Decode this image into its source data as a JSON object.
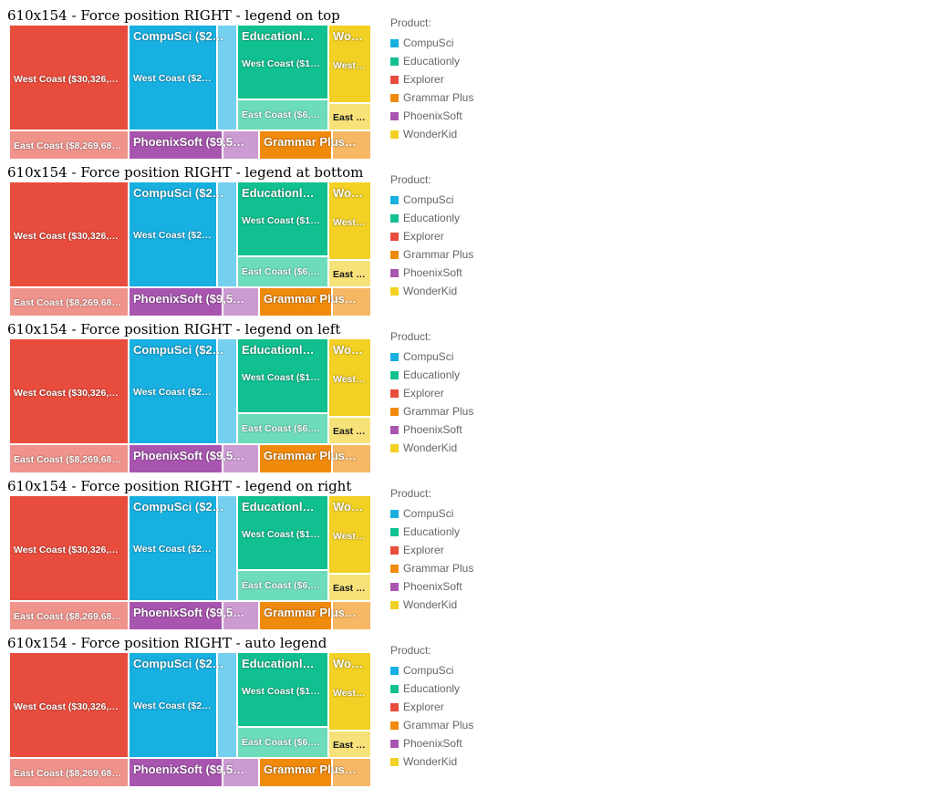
{
  "sections": [
    {
      "title": "610x154 - Force position RIGHT - legend on top"
    },
    {
      "title": "610x154 - Force position RIGHT - legend at bottom"
    },
    {
      "title": "610x154 - Force position RIGHT - legend on left"
    },
    {
      "title": "610x154 - Force position RIGHT - legend on right"
    },
    {
      "title": "610x154 - Force position RIGHT - auto legend"
    }
  ],
  "chart_data": {
    "type": "treemap",
    "legend": {
      "title": "Product:",
      "position": "right",
      "items": [
        {
          "name": "CompuSci",
          "color": "#17b0e0"
        },
        {
          "name": "Educationly",
          "color": "#10c090"
        },
        {
          "name": "Explorer",
          "color": "#e84c3d"
        },
        {
          "name": "Grammar Plus",
          "color": "#f08a0c"
        },
        {
          "name": "PhoenixSoft",
          "color": "#a855b0"
        },
        {
          "name": "WonderKid",
          "color": "#f2d024"
        }
      ]
    },
    "nodes": [
      {
        "product": "Explorer",
        "parent_label": "",
        "color": "#e84c3d",
        "light": "#f0938b",
        "children": [
          {
            "label": "West Coast ($30,326,…",
            "region": "West Coast"
          },
          {
            "label": "East Coast ($8,269,68…",
            "region": "East Coast"
          }
        ]
      },
      {
        "product": "CompuSci",
        "parent_label": "CompuSci ($2…",
        "color": "#17b0e0",
        "light": "#74d0ee",
        "children": [
          {
            "label": "West Coast ($2…",
            "region": "West Coast"
          },
          {
            "label": "",
            "region": "East Coast"
          }
        ]
      },
      {
        "product": "Educationly",
        "parent_label": "Educationl…",
        "color": "#10c090",
        "light": "#6ddcbb",
        "children": [
          {
            "label": "West Coast ($1…",
            "region": "West Coast"
          },
          {
            "label": "East Coast ($6,…",
            "region": "East Coast"
          }
        ]
      },
      {
        "product": "WonderKid",
        "parent_label": "Wo…",
        "color": "#f2d024",
        "light": "#f7e27a",
        "children": [
          {
            "label": "West …",
            "region": "West Coast"
          },
          {
            "label": "East …",
            "region": "East Coast"
          }
        ]
      },
      {
        "product": "PhoenixSoft",
        "parent_label": "PhoenixSoft ($9,5…",
        "color": "#a855b0",
        "light": "#cc9bd2",
        "children": [
          {
            "label": "",
            "region": "West Coast"
          },
          {
            "label": "",
            "region": "East Coast"
          }
        ]
      },
      {
        "product": "Grammar Plus",
        "parent_label": "Grammar Plus…",
        "color": "#f08a0c",
        "light": "#f6b865",
        "children": [
          {
            "label": "",
            "region": "West Coast"
          },
          {
            "label": "",
            "region": "East Coast"
          }
        ]
      }
    ]
  }
}
